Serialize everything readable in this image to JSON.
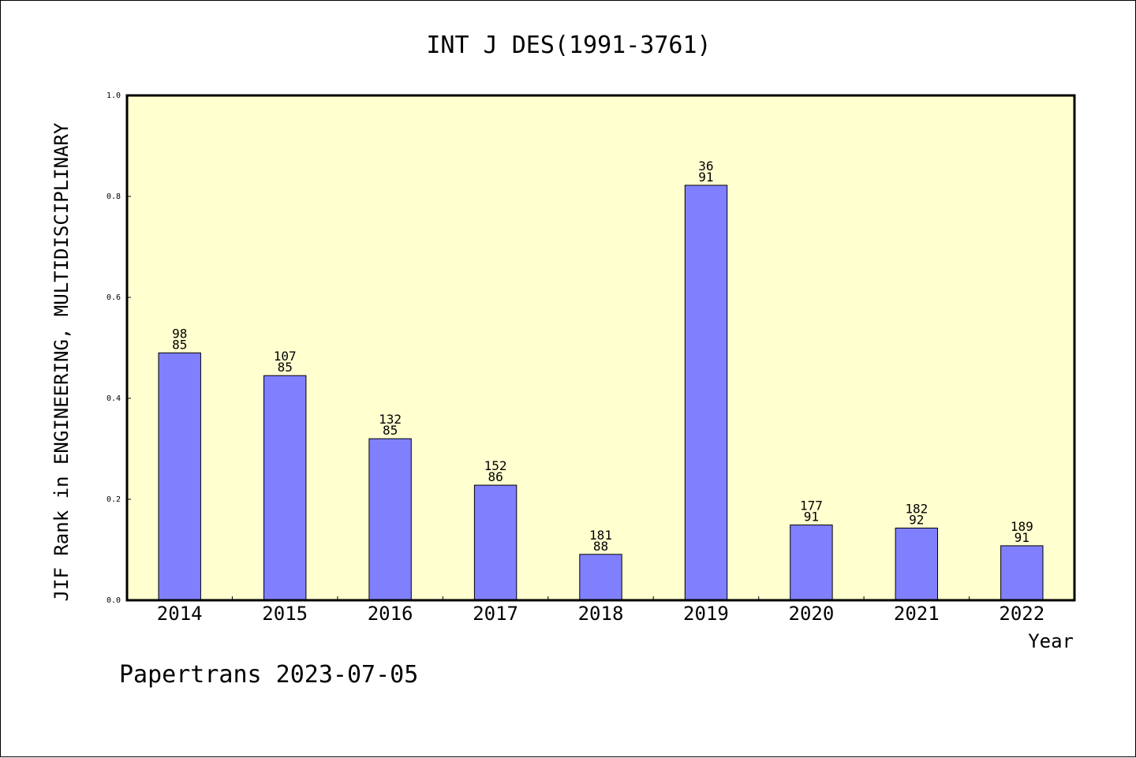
{
  "chart_data": {
    "type": "bar",
    "title": "INT J DES(1991-3761)",
    "xlabel": "Year",
    "ylabel": "JIF Rank in ENGINEERING, MULTIDISCIPLINARY",
    "ylim": [
      0,
      1.0
    ],
    "yticks": [
      "0.0",
      "0.2",
      "0.4",
      "0.6",
      "0.8",
      "1.0"
    ],
    "categories": [
      "2014",
      "2015",
      "2016",
      "2017",
      "2018",
      "2019",
      "2020",
      "2021",
      "2022"
    ],
    "values": [
      0.49,
      0.445,
      0.32,
      0.228,
      0.091,
      0.822,
      0.149,
      0.143,
      0.108
    ],
    "labels_top": [
      "98",
      "107",
      "132",
      "152",
      "181",
      "36",
      "177",
      "182",
      "189"
    ],
    "labels_bottom": [
      "85",
      "85",
      "85",
      "86",
      "88",
      "91",
      "91",
      "92",
      "91"
    ],
    "grid": false,
    "plot_background": "#ffffd0",
    "bar_color": "#8080ff"
  },
  "footer": {
    "text": "Papertrans 2023-07-05"
  }
}
